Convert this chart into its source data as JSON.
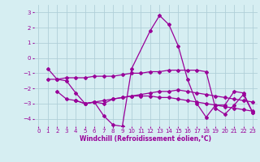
{
  "background_color": "#d6eef2",
  "grid_color": "#b0cfd8",
  "line_color": "#990099",
  "marker": "D",
  "markersize": 2,
  "linewidth": 0.9,
  "xlabel": "Windchill (Refroidissement éolien,°C)",
  "xlabel_fontsize": 5.5,
  "tick_fontsize": 5,
  "ylim": [
    -4.5,
    3.5
  ],
  "xlim": [
    -0.5,
    23.5
  ],
  "yticks": [
    -4,
    -3,
    -2,
    -1,
    0,
    1,
    2,
    3
  ],
  "xticks": [
    0,
    1,
    2,
    3,
    4,
    5,
    6,
    7,
    8,
    9,
    10,
    11,
    12,
    13,
    14,
    15,
    16,
    17,
    18,
    19,
    20,
    21,
    22,
    23
  ],
  "series": [
    [
      null,
      -0.7,
      -1.4,
      -1.5,
      -2.3,
      -3.0,
      -2.9,
      -3.8,
      -4.4,
      -4.5,
      -0.7,
      null,
      1.8,
      2.8,
      2.2,
      0.8,
      -1.4,
      -3.0,
      -3.9,
      -3.1,
      -3.1,
      -2.2,
      -2.3,
      -3.6
    ],
    [
      null,
      null,
      -2.2,
      -2.7,
      -2.8,
      -3.0,
      -2.9,
      -3.0,
      -2.7,
      -2.6,
      -2.5,
      -2.5,
      -2.5,
      -2.6,
      -2.6,
      -2.7,
      -2.8,
      -2.9,
      -3.0,
      -3.1,
      -3.2,
      -3.3,
      -3.4,
      -3.5
    ],
    [
      null,
      null,
      null,
      null,
      -2.8,
      -3.0,
      -2.9,
      -2.8,
      -2.7,
      -2.6,
      -2.5,
      -2.4,
      -2.3,
      -2.2,
      -2.2,
      -2.1,
      -2.2,
      -2.3,
      -2.4,
      -2.5,
      -2.6,
      -2.7,
      -2.8,
      -2.9
    ],
    [
      null,
      -1.4,
      -1.4,
      -1.3,
      -1.3,
      -1.3,
      -1.2,
      -1.2,
      -1.2,
      -1.1,
      -1.0,
      -1.0,
      -0.9,
      -0.9,
      -0.8,
      -0.8,
      -0.8,
      -0.8,
      -0.9,
      -3.3,
      -3.7,
      -3.1,
      -2.4,
      -3.6
    ]
  ]
}
